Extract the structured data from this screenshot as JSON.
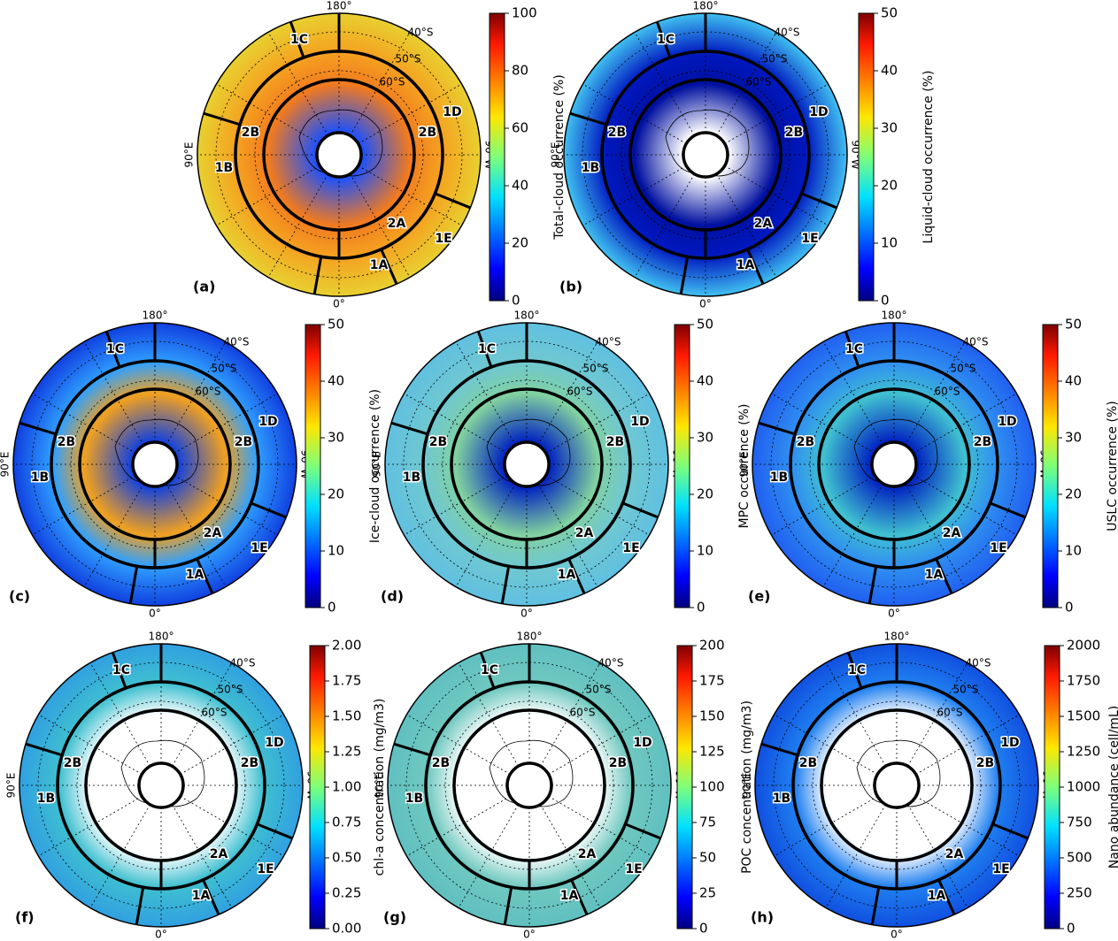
{
  "chart_data": [
    {
      "type": "polar-map",
      "panel": "(a)",
      "colorbar_label": "Total-cloud occurrence (%)",
      "clim": [
        0,
        100
      ],
      "cticks": [
        0,
        20,
        40,
        60,
        80,
        100
      ],
      "colormap": "jet",
      "lon_labels": [
        "180°",
        "0°",
        "90°E",
        "90°W"
      ],
      "lat_labels": [
        "40°S",
        "50°S",
        "60°S"
      ],
      "regions": [
        "1A",
        "1B",
        "1C",
        "1D",
        "1E",
        "2A",
        "2B",
        "2B"
      ]
    },
    {
      "type": "polar-map",
      "panel": "(b)",
      "colorbar_label": "Liquid-cloud occurrence (%)",
      "clim": [
        0,
        50
      ],
      "cticks": [
        0,
        10,
        20,
        30,
        40,
        50
      ],
      "colormap": "jet",
      "lon_labels": [
        "180°",
        "0°",
        "90°E",
        "90°W"
      ],
      "lat_labels": [
        "40°S",
        "50°S",
        "60°S"
      ],
      "regions": [
        "1A",
        "1B",
        "1C",
        "1D",
        "1E",
        "2A",
        "2B",
        "2B"
      ]
    },
    {
      "type": "polar-map",
      "panel": "(c)",
      "colorbar_label": "Ice-cloud occurrence (%)",
      "clim": [
        0,
        50
      ],
      "cticks": [
        0,
        10,
        20,
        30,
        40,
        50
      ],
      "colormap": "jet",
      "lon_labels": [
        "180°",
        "0°",
        "90°E",
        "90°W"
      ],
      "lat_labels": [
        "40°S",
        "50°S",
        "60°S"
      ],
      "regions": [
        "1A",
        "1B",
        "1C",
        "1D",
        "1E",
        "2A",
        "2B",
        "2B"
      ]
    },
    {
      "type": "polar-map",
      "panel": "(d)",
      "colorbar_label": "MPC occurrence (%)",
      "clim": [
        0,
        50
      ],
      "cticks": [
        0,
        10,
        20,
        30,
        40,
        50
      ],
      "colormap": "jet",
      "lon_labels": [
        "180°",
        "0°",
        "90°E",
        "90°W"
      ],
      "lat_labels": [
        "40°S",
        "50°S",
        "60°S"
      ],
      "regions": [
        "1A",
        "1B",
        "1C",
        "1D",
        "1E",
        "2A",
        "2B",
        "2B"
      ]
    },
    {
      "type": "polar-map",
      "panel": "(e)",
      "colorbar_label": "USLC occurrence (%)",
      "clim": [
        0,
        50
      ],
      "cticks": [
        0,
        10,
        20,
        30,
        40,
        50
      ],
      "colormap": "jet",
      "lon_labels": [
        "180°",
        "0°",
        "90°E",
        "90°W"
      ],
      "lat_labels": [
        "40°S",
        "50°S",
        "60°S"
      ],
      "regions": [
        "1A",
        "1B",
        "1C",
        "1D",
        "1E",
        "2A",
        "2B",
        "2B"
      ]
    },
    {
      "type": "polar-map",
      "panel": "(f)",
      "colorbar_label": "chl-a concentration (mg/m3)",
      "clim": [
        0,
        2
      ],
      "cticks": [
        {
          "value": 0,
          "label": "0.00"
        },
        0.25,
        {
          "value": 0.5,
          "label": "0.50"
        },
        0.75,
        {
          "value": 1,
          "label": "1.00"
        },
        1.25,
        {
          "value": 1.5,
          "label": "1.50"
        },
        1.75,
        {
          "value": 2,
          "label": "2.00"
        }
      ],
      "colormap": "jet",
      "lon_labels": [
        "180°",
        "0°",
        "90°E",
        "90°W"
      ],
      "lat_labels": [
        "40°S",
        "50°S",
        "60°S"
      ],
      "regions": [
        "1A",
        "1B",
        "1C",
        "1D",
        "1E",
        "2A",
        "2B",
        "2B"
      ]
    },
    {
      "type": "polar-map",
      "panel": "(g)",
      "colorbar_label": "POC concentration (mg/m3)",
      "clim": [
        0,
        200
      ],
      "cticks": [
        0,
        25,
        50,
        75,
        100,
        125,
        150,
        175,
        200
      ],
      "colormap": "jet",
      "lon_labels": [
        "180°",
        "0°",
        "90°E",
        "90°W"
      ],
      "lat_labels": [
        "40°S",
        "50°S",
        "60°S"
      ],
      "regions": [
        "1A",
        "1B",
        "1C",
        "1D",
        "1E",
        "2A",
        "2B",
        "2B"
      ]
    },
    {
      "type": "polar-map",
      "panel": "(h)",
      "colorbar_label": "Nano abundance (cell/mL)",
      "clim": [
        0,
        2000
      ],
      "cticks": [
        0,
        250,
        500,
        750,
        1000,
        1250,
        1500,
        1750,
        2000
      ],
      "colormap": "jet",
      "lon_labels": [
        "180°",
        "0°",
        "90°E",
        "90°W"
      ],
      "lat_labels": [
        "40°S",
        "50°S",
        "60°S"
      ],
      "regions": [
        "1A",
        "1B",
        "1C",
        "1D",
        "1E",
        "2A",
        "2B",
        "2B"
      ]
    }
  ]
}
